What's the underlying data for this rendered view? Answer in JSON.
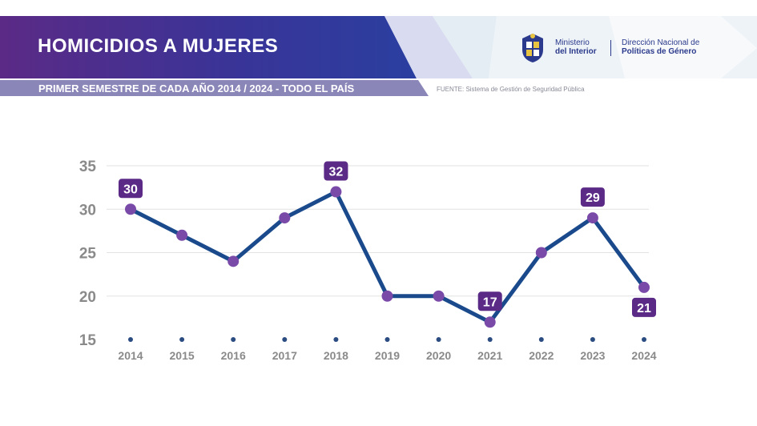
{
  "header": {
    "title": "HOMICIDIOS A MUJERES",
    "subtitle": "PRIMER SEMESTRE DE CADA AÑO 2014 / 2024 - TODO EL PAÍS",
    "source": "FUENTE: Sistema de Gestión de Seguridad Pública",
    "ministry_line1": "Ministerio",
    "ministry_line2": "del Interior",
    "direccion_line1": "Dirección Nacional de",
    "direccion_line2": "Políticas de Género",
    "colors": {
      "purple": "#5b2a86",
      "blue": "#2f3f9e"
    }
  },
  "chart_data": {
    "type": "line",
    "x": [
      "2014",
      "2015",
      "2016",
      "2017",
      "2018",
      "2019",
      "2020",
      "2021",
      "2022",
      "2023",
      "2024"
    ],
    "values": [
      30,
      27,
      24,
      29,
      32,
      20,
      20,
      17,
      25,
      29,
      21
    ],
    "labeled_points": [
      {
        "index": 0,
        "text": "30",
        "placement": "above"
      },
      {
        "index": 4,
        "text": "32",
        "placement": "above"
      },
      {
        "index": 7,
        "text": "17",
        "placement": "above"
      },
      {
        "index": 9,
        "text": "29",
        "placement": "above"
      },
      {
        "index": 10,
        "text": "21",
        "placement": "below"
      }
    ],
    "yticks": [
      "15",
      "20",
      "25",
      "30",
      "35"
    ],
    "ylim": [
      15,
      35
    ],
    "grid": true,
    "colors": {
      "line": "#1a4a8c",
      "marker": "#7a4aa8",
      "label_bg": "#5b2a86",
      "axis_text": "#8a8a8a",
      "grid": "#e2e2e2",
      "base_dot": "#2b4c80"
    }
  }
}
